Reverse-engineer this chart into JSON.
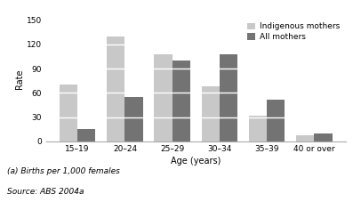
{
  "categories": [
    "15–19",
    "20–24",
    "25–29",
    "30–34",
    "35–39",
    "40 or over"
  ],
  "indigenous_values": [
    70,
    130,
    108,
    68,
    32,
    8
  ],
  "all_mothers_values": [
    15,
    55,
    100,
    108,
    52,
    10
  ],
  "indigenous_color": "#c8c8c8",
  "all_mothers_color": "#737373",
  "ylabel": "Rate",
  "xlabel": "Age (years)",
  "ylim": [
    0,
    155
  ],
  "yticks": [
    0,
    30,
    60,
    90,
    120,
    150
  ],
  "legend_labels": [
    "Indigenous mothers",
    "All mothers"
  ],
  "footnote1": "(a) Births per 1,000 females",
  "footnote2": "Source: ABS 2004a",
  "bar_width": 0.38
}
